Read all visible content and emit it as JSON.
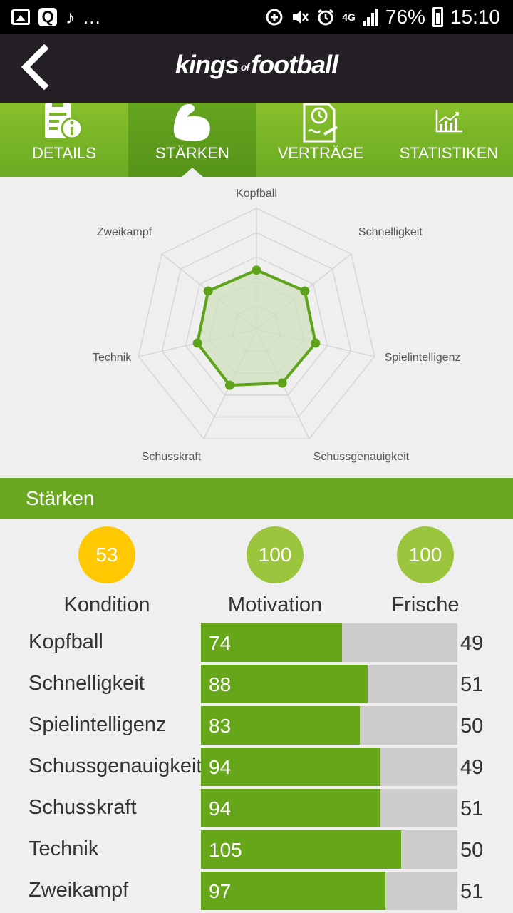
{
  "status_bar": {
    "music_glyph": "♪",
    "dots": "...",
    "network": "4G",
    "battery": "76%",
    "time": "15:10"
  },
  "header": {
    "logo_part1": "kings",
    "logo_of": "of",
    "logo_part2": "football"
  },
  "tabs": [
    {
      "label": "DETAILS",
      "icon": "document-info-icon",
      "active": false
    },
    {
      "label": "STÄRKEN",
      "icon": "flexed-arm-icon",
      "active": true
    },
    {
      "label": "VERTRÄGE",
      "icon": "contract-clock-icon",
      "active": false
    },
    {
      "label": "STATISTIKEN",
      "icon": "bar-chart-icon",
      "active": false
    }
  ],
  "chart_data": {
    "type": "radar",
    "axes": [
      "Kopfball",
      "Schnelligkeit",
      "Spielintelligenz",
      "Schussgenauigkeit",
      "Schusskraft",
      "Technik",
      "Zweikampf"
    ],
    "values": [
      49,
      51,
      50,
      49,
      51,
      50,
      51
    ],
    "range": [
      0,
      100
    ],
    "rings": 5,
    "grid": true,
    "line_color": "#5ea31a",
    "fill_color": "#cfe0bd"
  },
  "section": {
    "title": "Stärken"
  },
  "stats": [
    {
      "value": "53",
      "label": "Kondition",
      "color": "#ffc800"
    },
    {
      "value": "100",
      "label": "Motivation",
      "color": "#9bc53d"
    },
    {
      "value": "100",
      "label": "Frische",
      "color": "#9bc53d"
    }
  ],
  "skills": [
    {
      "name": "Kopfball",
      "value": "74",
      "max": "49",
      "fill": 0.55
    },
    {
      "name": "Schnelligkeit",
      "value": "88",
      "max": "51",
      "fill": 0.65
    },
    {
      "name": "Spielintelligenz",
      "value": "83",
      "max": "50",
      "fill": 0.62
    },
    {
      "name": "Schussgenauigkeit",
      "value": "94",
      "max": "49",
      "fill": 0.7
    },
    {
      "name": "Schusskraft",
      "value": "94",
      "max": "51",
      "fill": 0.7
    },
    {
      "name": "Technik",
      "value": "105",
      "max": "50",
      "fill": 0.78
    },
    {
      "name": "Zweikampf",
      "value": "97",
      "max": "51",
      "fill": 0.72
    }
  ]
}
